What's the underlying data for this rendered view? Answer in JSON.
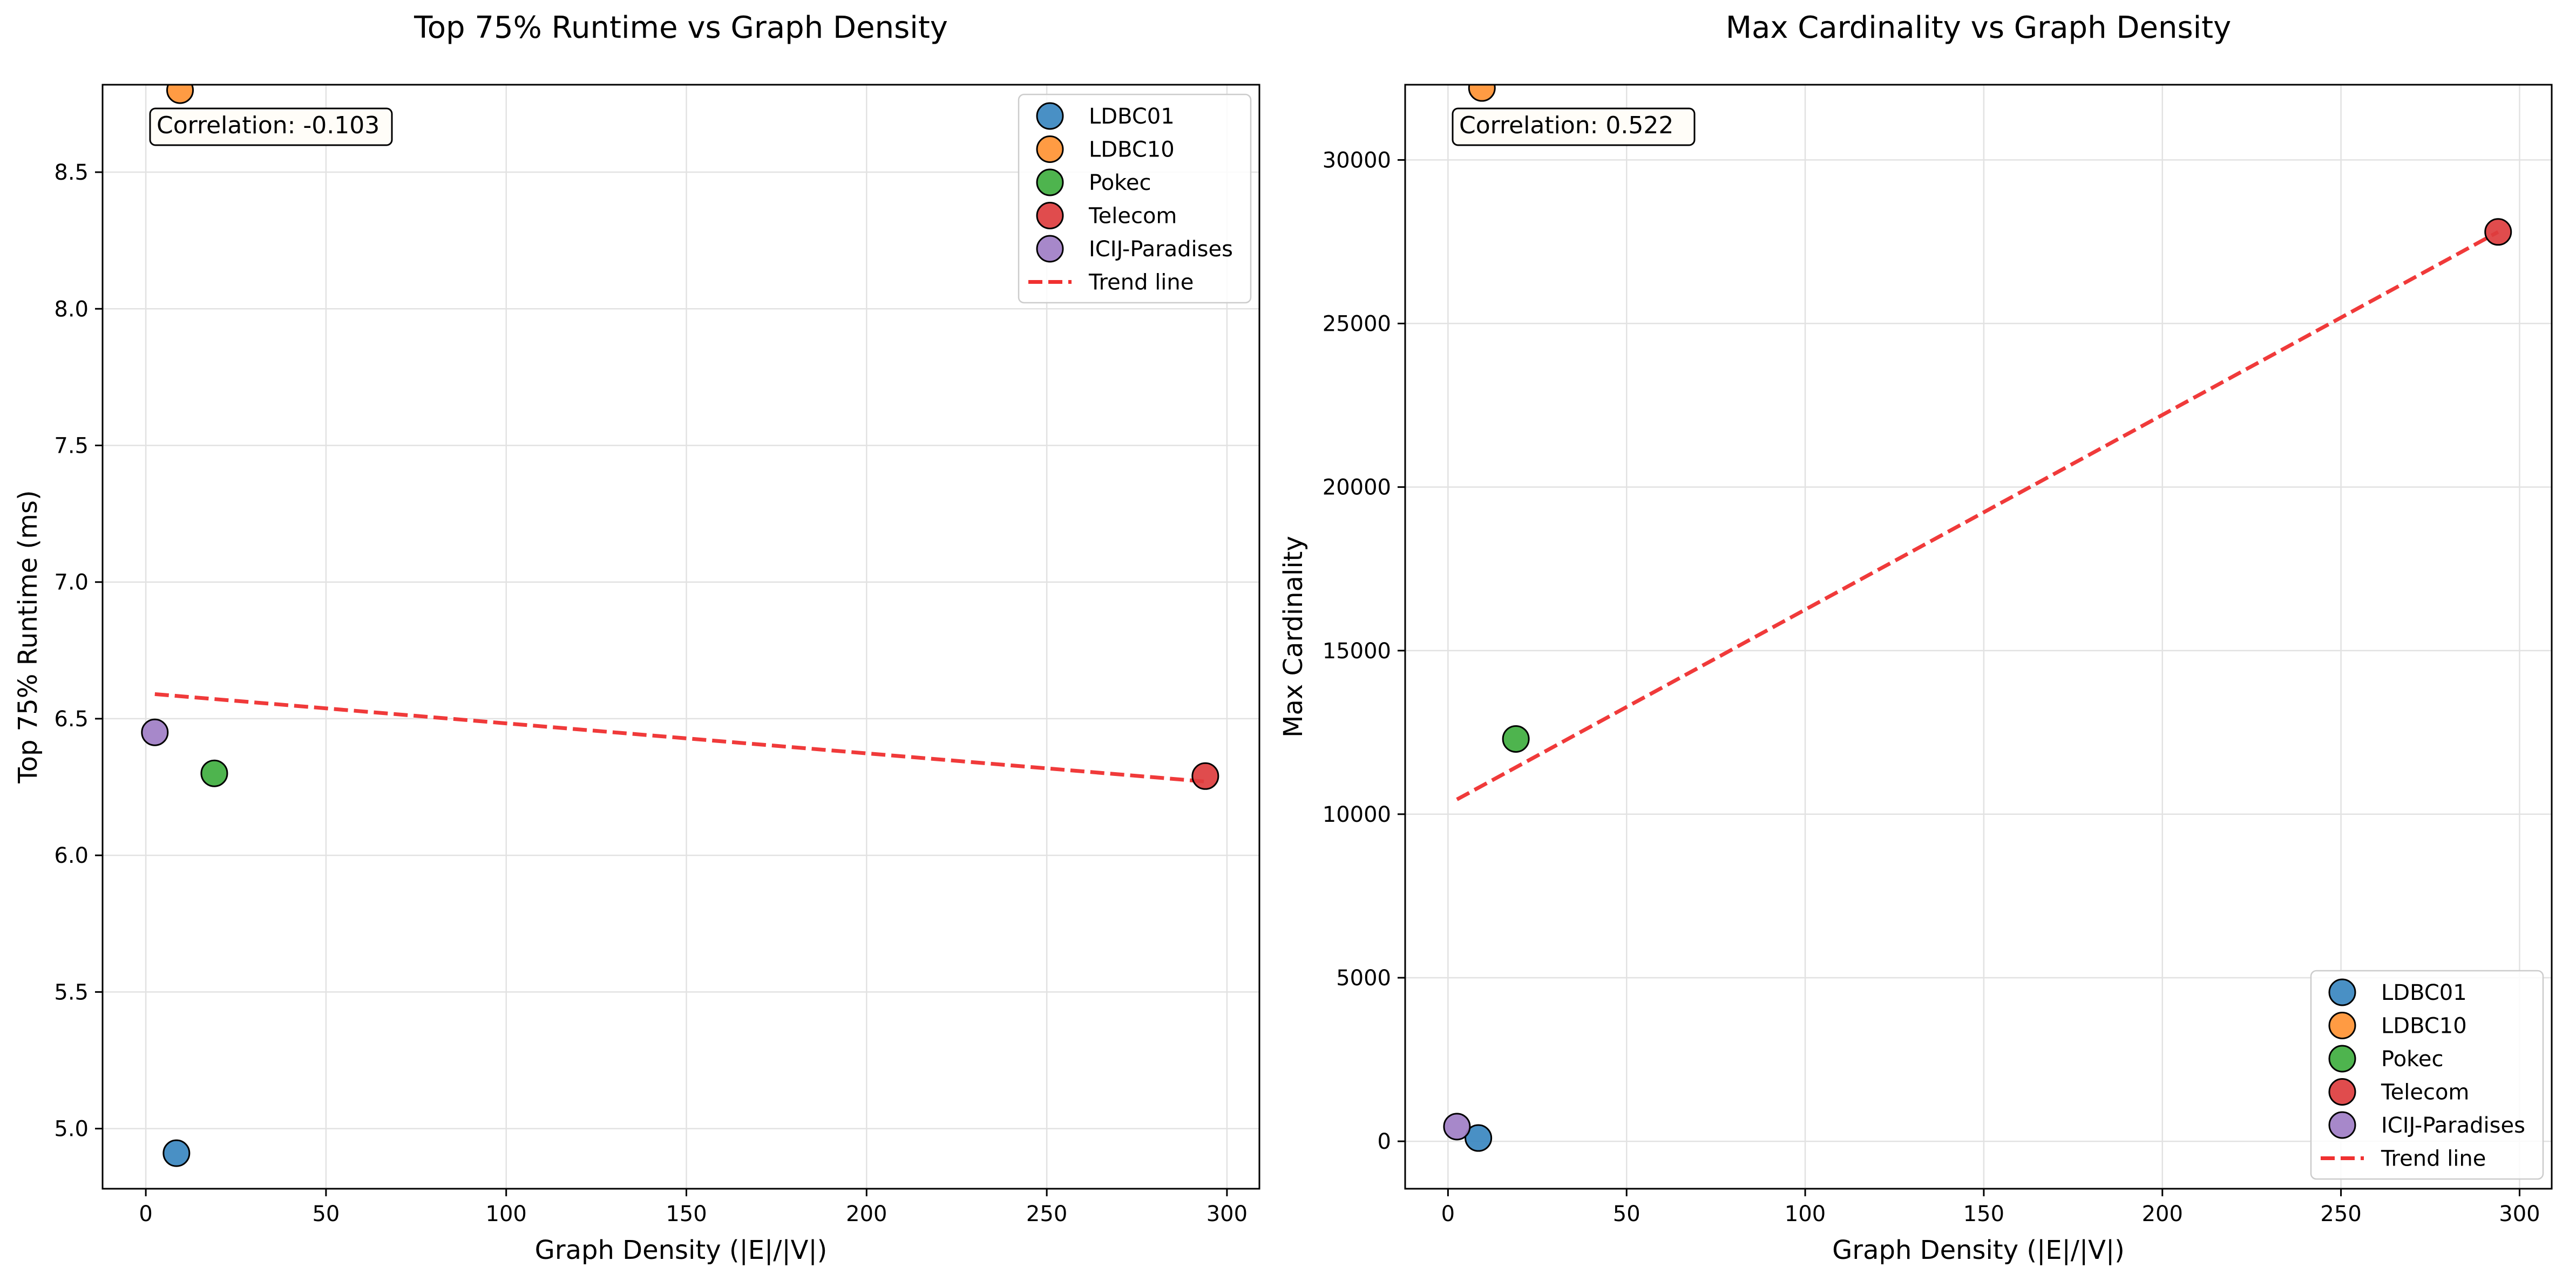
{
  "chart_data": [
    {
      "type": "scatter",
      "title": "Top 75% Runtime vs Graph Density",
      "xlabel": "Graph Density (|E|/|V|)",
      "ylabel": "Top 75% Runtime (ms)",
      "xlim": [
        -12,
        309
      ],
      "ylim": [
        4.78,
        8.82
      ],
      "xticks": [
        0,
        50,
        100,
        150,
        200,
        250,
        300
      ],
      "yticks": [
        5.0,
        5.5,
        6.0,
        6.5,
        7.0,
        7.5,
        8.0,
        8.5
      ],
      "ytick_decimals": 1,
      "grid": true,
      "legend_position": "top-right",
      "annotation": "Correlation: -0.103",
      "series": [
        {
          "name": "LDBC01",
          "color": "#3a87c0",
          "x": [
            8.5
          ],
          "y": [
            4.91
          ]
        },
        {
          "name": "LDBC10",
          "color": "#ff9333",
          "x": [
            9.5
          ],
          "y": [
            8.8
          ]
        },
        {
          "name": "Pokec",
          "color": "#3fae3f",
          "x": [
            19
          ],
          "y": [
            6.3
          ]
        },
        {
          "name": "Telecom",
          "color": "#dd3d3e",
          "x": [
            294
          ],
          "y": [
            6.29
          ]
        },
        {
          "name": "ICIJ-Paradises",
          "color": "#a07ec6",
          "x": [
            2.5
          ],
          "y": [
            6.45
          ]
        }
      ],
      "trend": {
        "name": "Trend line",
        "color": "#f03030",
        "x": [
          2.5,
          294
        ],
        "y": [
          6.59,
          6.27
        ]
      }
    },
    {
      "type": "scatter",
      "title": "Max Cardinality vs Graph Density",
      "xlabel": "Graph Density (|E|/|V|)",
      "ylabel": "Max Cardinality",
      "xlim": [
        -12,
        309
      ],
      "ylim": [
        -1450,
        32300
      ],
      "xticks": [
        0,
        50,
        100,
        150,
        200,
        250,
        300
      ],
      "yticks": [
        0,
        5000,
        10000,
        15000,
        20000,
        25000,
        30000
      ],
      "ytick_decimals": 0,
      "grid": true,
      "legend_position": "bottom-right",
      "annotation": "Correlation: 0.522",
      "series": [
        {
          "name": "LDBC01",
          "color": "#3a87c0",
          "x": [
            8.5
          ],
          "y": [
            100
          ]
        },
        {
          "name": "LDBC10",
          "color": "#ff9333",
          "x": [
            9.5
          ],
          "y": [
            32200
          ]
        },
        {
          "name": "Pokec",
          "color": "#3fae3f",
          "x": [
            19
          ],
          "y": [
            12300
          ]
        },
        {
          "name": "Telecom",
          "color": "#dd3d3e",
          "x": [
            294
          ],
          "y": [
            27800
          ]
        },
        {
          "name": "ICIJ-Paradises",
          "color": "#a07ec6",
          "x": [
            2.5
          ],
          "y": [
            450
          ]
        }
      ],
      "trend": {
        "name": "Trend line",
        "color": "#f03030",
        "x": [
          2.5,
          294
        ],
        "y": [
          10450,
          27800
        ]
      }
    }
  ]
}
